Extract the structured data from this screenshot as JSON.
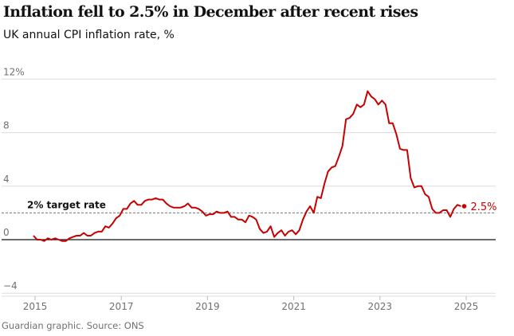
{
  "chart_data": {
    "type": "line",
    "title": "Inflation fell to 2.5% in December after recent rises",
    "subtitle": "UK annual CPI inflation rate, %",
    "source": "Guardian graphic. Source: ONS",
    "xlabel": "",
    "ylabel": "",
    "ylim": [
      -4,
      12
    ],
    "yticks": [
      {
        "v": 12,
        "label": "12%"
      },
      {
        "v": 8,
        "label": "8"
      },
      {
        "v": 4,
        "label": "4"
      },
      {
        "v": 0,
        "label": "0"
      },
      {
        "v": -4,
        "label": "−4"
      }
    ],
    "xticks": [
      "2015",
      "2017",
      "2019",
      "2021",
      "2023",
      "2025"
    ],
    "start": "2015-01",
    "frequency": "monthly",
    "series": [
      {
        "name": "CPI inflation",
        "color": "#c70000",
        "values": [
          0.3,
          0.0,
          0.0,
          -0.1,
          0.1,
          0.0,
          0.1,
          0.0,
          -0.1,
          -0.1,
          0.1,
          0.2,
          0.3,
          0.3,
          0.5,
          0.3,
          0.3,
          0.5,
          0.6,
          0.6,
          1.0,
          0.9,
          1.2,
          1.6,
          1.8,
          2.3,
          2.3,
          2.7,
          2.9,
          2.6,
          2.6,
          2.9,
          3.0,
          3.0,
          3.1,
          3.0,
          3.0,
          2.7,
          2.5,
          2.4,
          2.4,
          2.4,
          2.5,
          2.7,
          2.4,
          2.4,
          2.3,
          2.1,
          1.8,
          1.9,
          1.9,
          2.1,
          2.0,
          2.0,
          2.1,
          1.7,
          1.7,
          1.5,
          1.5,
          1.3,
          1.8,
          1.7,
          1.5,
          0.8,
          0.5,
          0.6,
          1.0,
          0.2,
          0.5,
          0.7,
          0.3,
          0.6,
          0.7,
          0.4,
          0.7,
          1.5,
          2.1,
          2.5,
          2.0,
          3.2,
          3.1,
          4.2,
          5.1,
          5.4,
          5.5,
          6.2,
          7.0,
          9.0,
          9.1,
          9.4,
          10.1,
          9.9,
          10.1,
          11.1,
          10.7,
          10.5,
          10.1,
          10.4,
          10.1,
          8.7,
          8.7,
          7.9,
          6.8,
          6.7,
          6.7,
          4.6,
          3.9,
          4.0,
          4.0,
          3.4,
          3.2,
          2.3,
          2.0,
          2.0,
          2.2,
          2.2,
          1.7,
          2.3,
          2.6,
          2.5
        ]
      }
    ],
    "reference_line": {
      "value": 2,
      "label": "2% target rate"
    },
    "end_label": "2.5%"
  }
}
